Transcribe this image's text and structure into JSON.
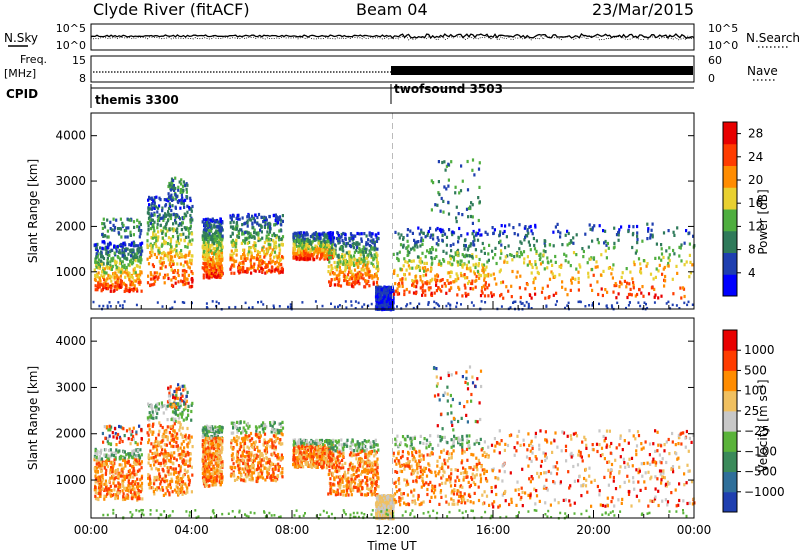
{
  "header": {
    "title": "Clyde River (fitACF)",
    "beam": "Beam 04",
    "date": "23/Mar/2015"
  },
  "noise_panel": {
    "left_label": "N.Sky",
    "right_label": "N.Search",
    "left_ticks": [
      "10^5",
      "10^0"
    ],
    "right_ticks": [
      "10^5",
      "10^0"
    ]
  },
  "freq_panel": {
    "left_label_line1": "Freq.",
    "left_label_line2": "[MHz]",
    "left_ticks": [
      "15",
      "8"
    ],
    "right_label": "Nave",
    "right_ticks": [
      "60",
      "0"
    ]
  },
  "cpid_panel": {
    "label": "CPID",
    "segments": [
      {
        "name": "themis 3300",
        "start_hour": 0,
        "end_hour": 12
      },
      {
        "name": "twofsound 3503",
        "start_hour": 12,
        "end_hour": 24
      }
    ]
  },
  "chart_data": [
    {
      "type": "heatmap",
      "panel": "power",
      "ylabel": "Slant Range [km]",
      "xlabel": "Time UT",
      "x_ticks": [
        "00:00",
        "04:00",
        "08:00",
        "12:00",
        "16:00",
        "20:00",
        "00:00"
      ],
      "x_range_hours": [
        0,
        24
      ],
      "y_ticks": [
        1000,
        2000,
        3000,
        4000
      ],
      "ylim": [
        180,
        4500
      ],
      "colorbar": {
        "label": "Power [dB]",
        "ticks": [
          4,
          8,
          12,
          16,
          20,
          24,
          28
        ],
        "range": [
          0,
          30
        ],
        "colors": [
          "#0000ff",
          "#1f3fb0",
          "#2f7a5a",
          "#4fae3f",
          "#e8d030",
          "#ff8c00",
          "#ff3c00",
          "#e80000"
        ]
      }
    },
    {
      "type": "heatmap",
      "panel": "velocity",
      "ylabel": "Slant Range [km]",
      "xlabel": "Time UT",
      "x_ticks": [
        "00:00",
        "04:00",
        "08:00",
        "12:00",
        "16:00",
        "20:00",
        "00:00"
      ],
      "x_range_hours": [
        0,
        24
      ],
      "y_ticks": [
        1000,
        2000,
        3000,
        4000
      ],
      "ylim": [
        180,
        4500
      ],
      "colorbar": {
        "label": "Velocity [m s⁻¹]",
        "ticks": [
          "1000",
          "500",
          "100",
          "25",
          "−25",
          "−100",
          "−500",
          "−1000"
        ],
        "colors": [
          "#1f3fb0",
          "#2f6f9a",
          "#3a8a5a",
          "#5ab33a",
          "#c8c8c8",
          "#f0c060",
          "#ff8c00",
          "#ff3c00",
          "#e80000"
        ]
      }
    }
  ]
}
